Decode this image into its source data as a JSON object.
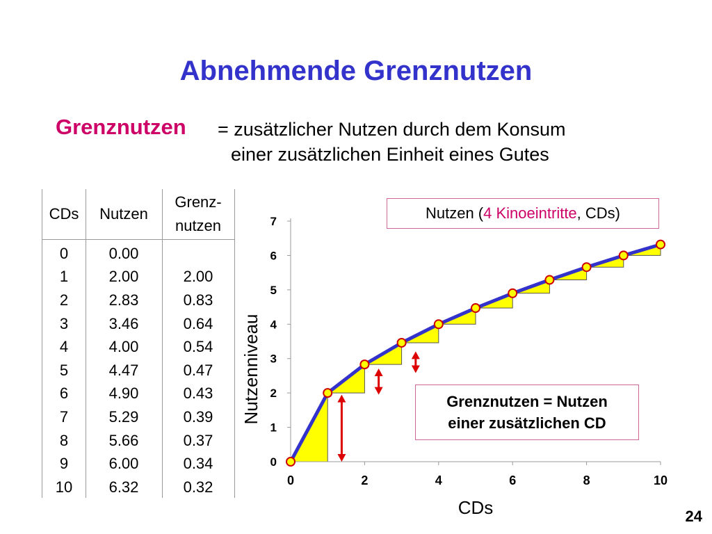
{
  "slide": {
    "title": "Abnehmende Grenznutzen",
    "definition_term": "Grenznutzen",
    "definition_line1": "= zusätzlicher Nutzen durch dem Konsum",
    "definition_line2": "einer zusätzlichen Einheit eines Gutes",
    "page_number": "24"
  },
  "table": {
    "headers": {
      "cds": "CDs",
      "nutzen": "Nutzen",
      "grenz_line1": "Grenz-",
      "grenz_line2": "nutzen"
    },
    "rows": [
      {
        "cds": "0",
        "nutzen": "0.00",
        "grenz": ""
      },
      {
        "cds": "1",
        "nutzen": "2.00",
        "grenz": "2.00"
      },
      {
        "cds": "2",
        "nutzen": "2.83",
        "grenz": "0.83"
      },
      {
        "cds": "3",
        "nutzen": "3.46",
        "grenz": "0.64"
      },
      {
        "cds": "4",
        "nutzen": "4.00",
        "grenz": "0.54"
      },
      {
        "cds": "5",
        "nutzen": "4.47",
        "grenz": "0.47"
      },
      {
        "cds": "6",
        "nutzen": "4.90",
        "grenz": "0.43"
      },
      {
        "cds": "7",
        "nutzen": "5.29",
        "grenz": "0.39"
      },
      {
        "cds": "8",
        "nutzen": "5.66",
        "grenz": "0.37"
      },
      {
        "cds": "9",
        "nutzen": "6.00",
        "grenz": "0.34"
      },
      {
        "cds": "10",
        "nutzen": "6.32",
        "grenz": "0.32"
      }
    ]
  },
  "chart_data": {
    "type": "line",
    "title": "",
    "xlabel": "CDs",
    "ylabel": "Nutzenniveau",
    "x": [
      0,
      1,
      2,
      3,
      4,
      5,
      6,
      7,
      8,
      9,
      10
    ],
    "series": [
      {
        "values": [
          0.0,
          2.0,
          2.83,
          3.46,
          4.0,
          4.47,
          4.9,
          5.29,
          5.66,
          6.0,
          6.32
        ]
      }
    ],
    "xlim": [
      0,
      10
    ],
    "ylim": [
      0,
      7
    ],
    "xticks": [
      0,
      2,
      4,
      6,
      8,
      10
    ],
    "yticks": [
      0,
      1,
      2,
      3,
      4,
      5,
      6,
      7
    ],
    "grid": false,
    "step_fill": "yellow increments between consecutive points",
    "legend": {
      "prefix": "Nutzen (",
      "highlight": "4 Kinoeintritte",
      "suffix": ", CDs)"
    },
    "annotation": {
      "line1": "Grenznutzen = Nutzen",
      "line2": "einer zusätzlichen CD"
    },
    "colors": {
      "line": "#3333cc",
      "marker_fill": "#ffff00",
      "marker_stroke": "#cc0000",
      "step_fill": "#ffff00",
      "arrow": "#dd0000"
    }
  }
}
